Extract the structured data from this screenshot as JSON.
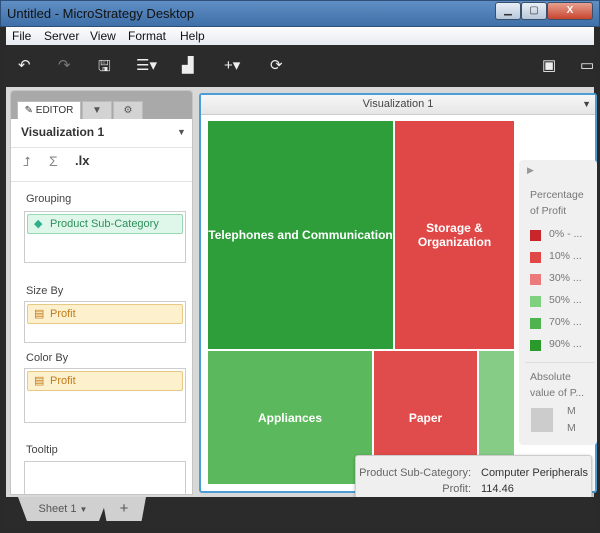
{
  "window": {
    "title": "Untitled - MicroStrategy Desktop"
  },
  "menu": [
    "File",
    "Server",
    "View",
    "Format",
    "Help"
  ],
  "toolbar": {
    "icons": [
      "undo-icon",
      "redo-icon",
      "save-icon",
      "add-data-icon",
      "add-visualization-icon",
      "insert-icon",
      "refresh-icon",
      "present-icon",
      "presentation-mode-icon"
    ]
  },
  "editor": {
    "tab_label": "EDITOR",
    "title": "Visualization 1",
    "grouping_label": "Grouping",
    "grouping_item": "Product Sub-Category",
    "size_label": "Size By",
    "size_item": "Profit",
    "color_label": "Color By",
    "color_item": "Profit",
    "tooltip_label": "Tooltip"
  },
  "viz": {
    "title": "Visualization 1",
    "cells": [
      {
        "label": "Telephones and Communication",
        "color": "#2e9e3a"
      },
      {
        "label": "Storage & Organization",
        "color": "#e04848"
      },
      {
        "label": "Appliances",
        "color": "#5cb85c"
      },
      {
        "label": "Paper",
        "color": "#e04c4c"
      },
      {
        "label": "",
        "color": "#86cc86"
      }
    ]
  },
  "legend": {
    "title": "Percentage of Profit",
    "items": [
      {
        "label": "0% - ...",
        "color": "#c9262c"
      },
      {
        "label": "10% ...",
        "color": "#e04848"
      },
      {
        "label": "30% ...",
        "color": "#ec7a7a"
      },
      {
        "label": "50% ...",
        "color": "#7fd07f"
      },
      {
        "label": "70% ...",
        "color": "#4fb34f"
      },
      {
        "label": "90% ...",
        "color": "#2a9a2a"
      }
    ],
    "size_title": "Absolute value of P...",
    "size_max": "M",
    "size_min": "M"
  },
  "tooltip": {
    "k1": "Product Sub-Category:",
    "v1": "Computer Peripherals",
    "k2": "Profit:",
    "v2": "114.46"
  },
  "sheets": {
    "tab": "Sheet 1",
    "add": "+"
  }
}
